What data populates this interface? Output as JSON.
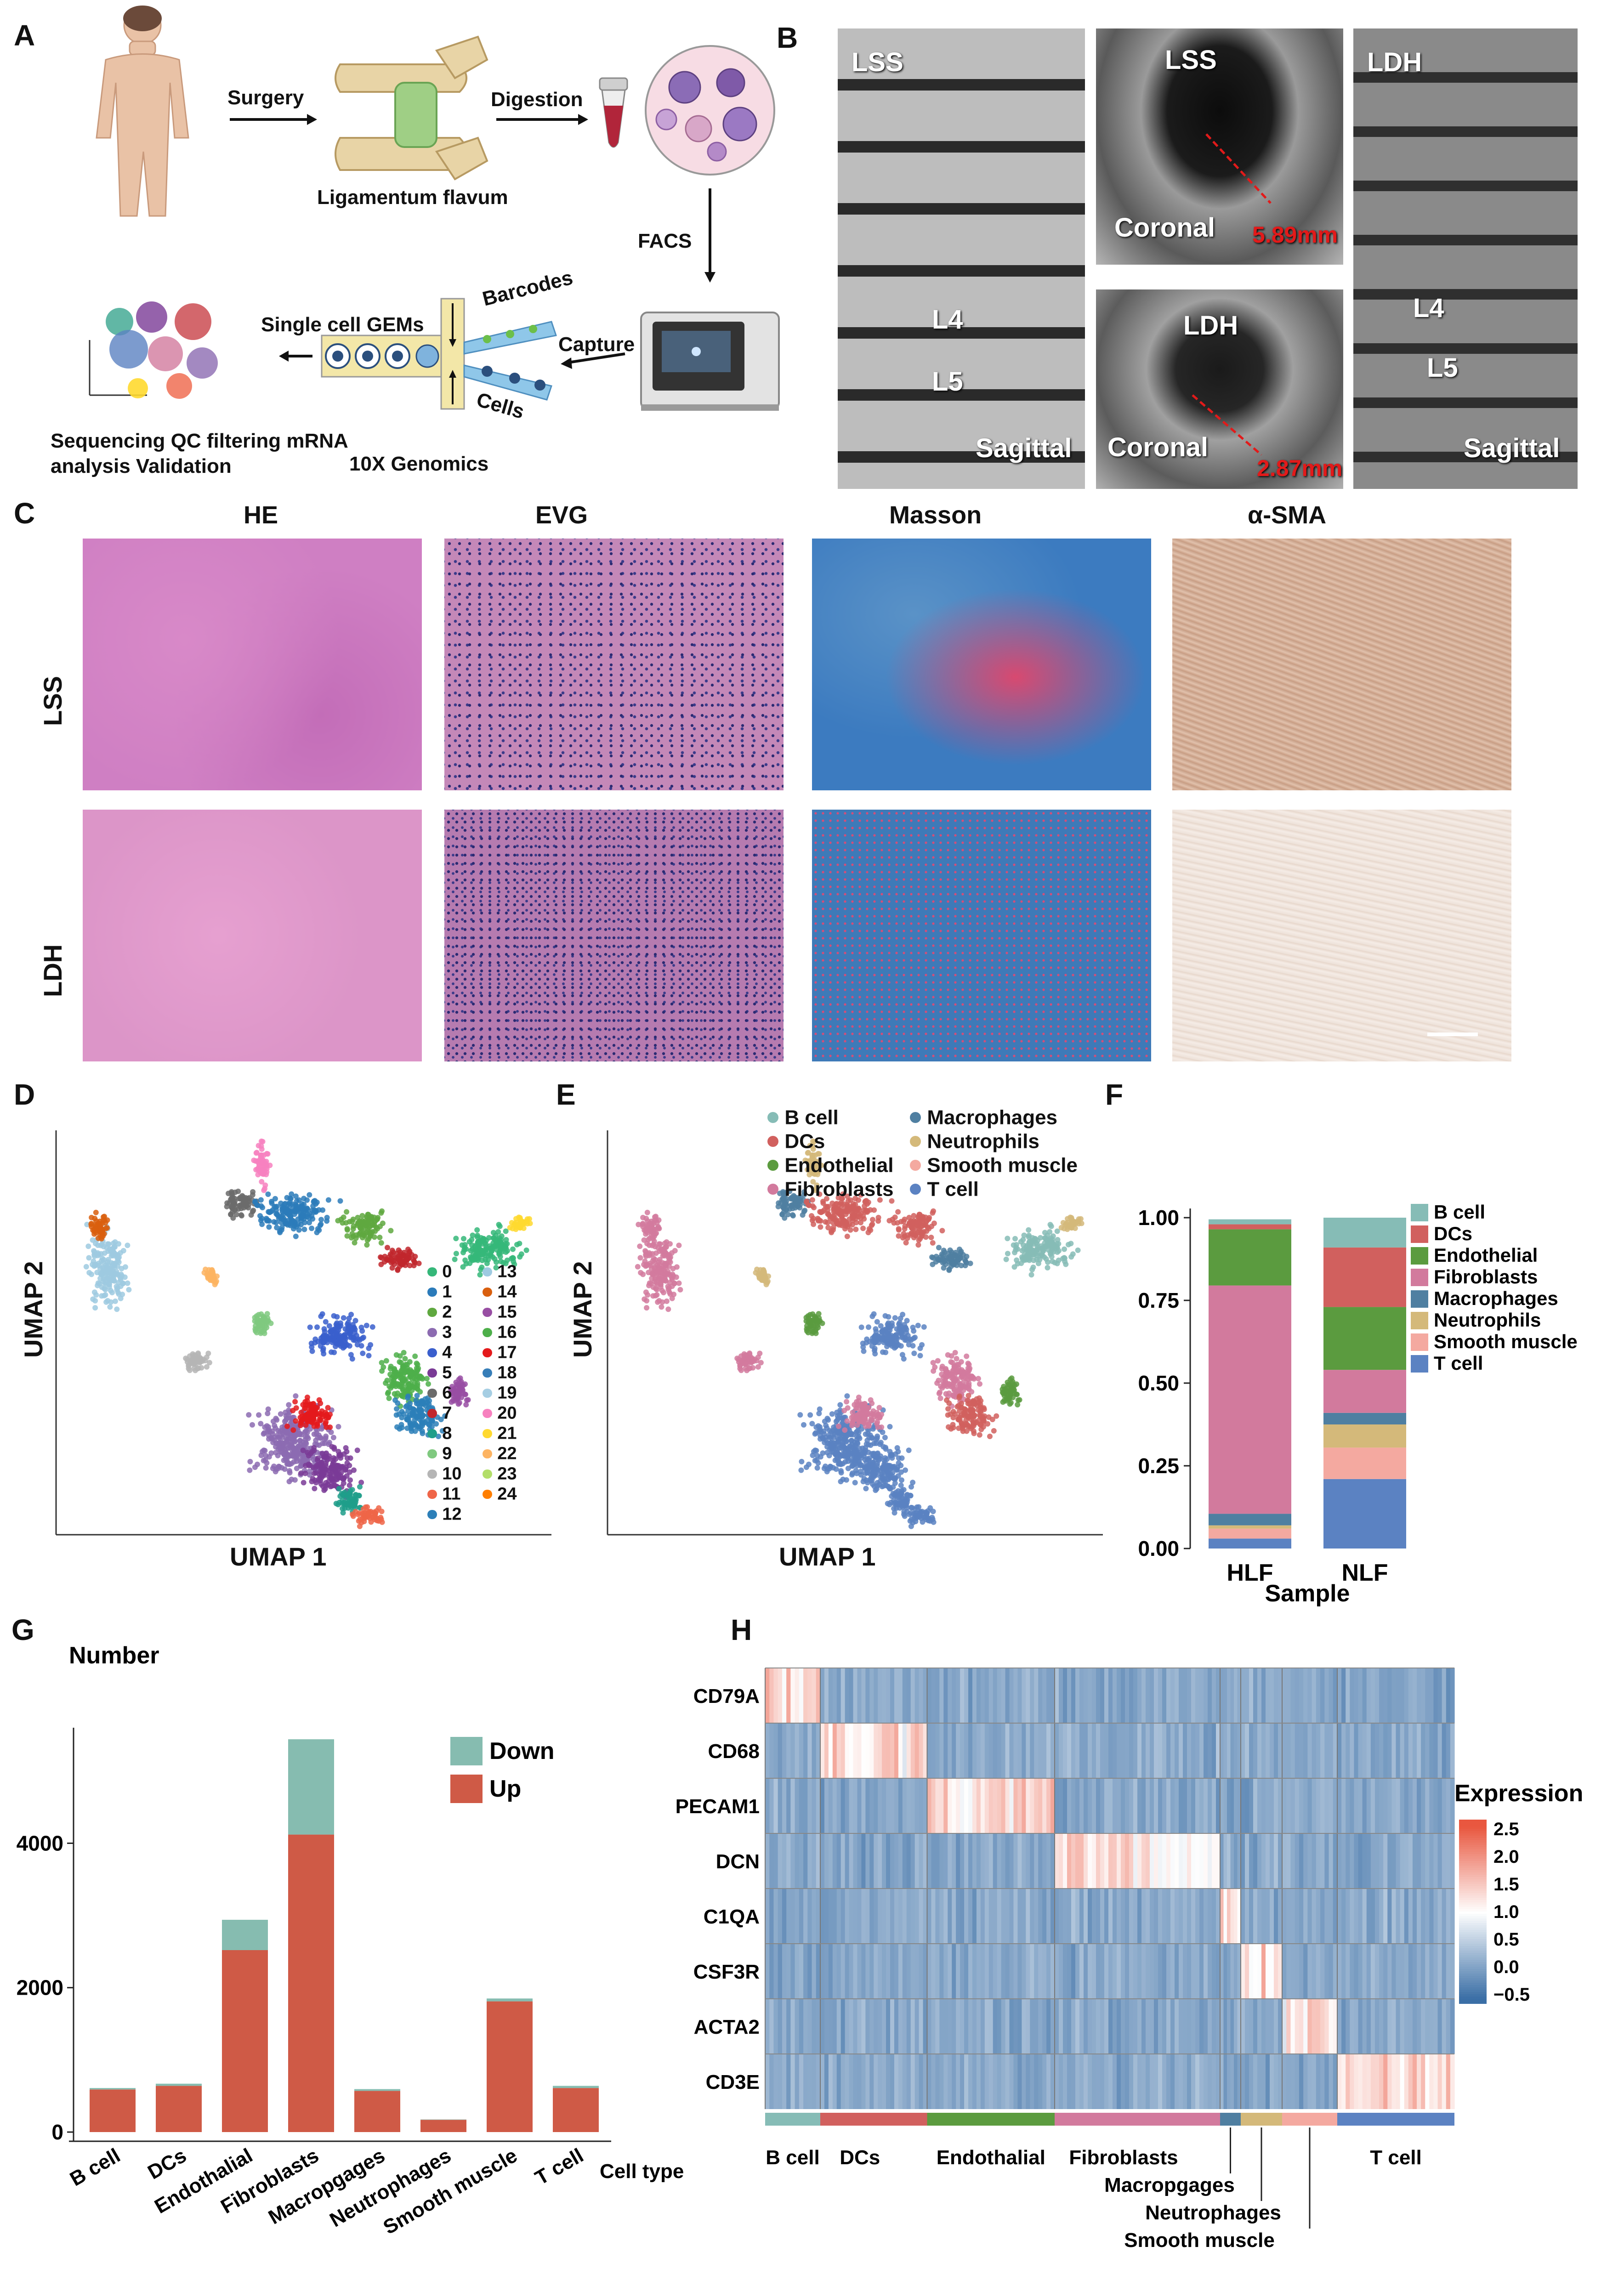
{
  "panels": {
    "A": {
      "label": "A",
      "steps": {
        "surgery": "Surgery",
        "digestion": "Digestion",
        "ligamentum": "Ligamentum flavum",
        "facs": "FACS",
        "single_cell": "Single cell GEMs",
        "barcodes": "Barcodes",
        "cells": "Cells",
        "capture": "Capture",
        "genomics": "10X Genomics",
        "sequencing_line1": "Sequencing QC filtering mRNA",
        "sequencing_line2": "analysis Validation"
      }
    },
    "B": {
      "label": "B",
      "images": [
        {
          "title": "LSS",
          "view": "Sagittal",
          "levels": [
            "L4",
            "L5"
          ]
        },
        {
          "title": "LSS",
          "view": "Coronal",
          "measure": "5.89mm"
        },
        {
          "title": "LDH",
          "view": "Coronal",
          "measure": "2.87mm"
        },
        {
          "title": "LDH",
          "view": "Sagittal",
          "levels": [
            "L4",
            "L5"
          ]
        }
      ]
    },
    "C": {
      "label": "C",
      "columns": [
        "HE",
        "EVG",
        "Masson",
        "α-SMA"
      ],
      "rows": [
        "LSS",
        "LDH"
      ]
    },
    "D": {
      "label": "D",
      "xlabel": "UMAP 1",
      "ylabel": "UMAP 2",
      "clusters_left": [
        "0",
        "1",
        "2",
        "3",
        "4",
        "5",
        "6",
        "7",
        "8",
        "9",
        "10",
        "11",
        "12"
      ],
      "clusters_right": [
        "13",
        "14",
        "15",
        "16",
        "17",
        "18",
        "19",
        "20",
        "21",
        "22",
        "23",
        "24"
      ],
      "colors_left": [
        "#35b779",
        "#2b7bba",
        "#5fa83f",
        "#8c6bb1",
        "#3a5fcd",
        "#7a3b96",
        "#6b6b6b",
        "#c1272d",
        "#1f9e89",
        "#7fc97f",
        "#b5b5b5",
        "#ef6548",
        "#2c7fb8"
      ],
      "colors_right": [
        "#9ecae1",
        "#d95f0e",
        "#984ea3",
        "#4daf4a",
        "#e41a1c",
        "#377eb8",
        "#a6cee3",
        "#f781bf",
        "#ffd92f",
        "#fdb462",
        "#b3de69",
        "#ff7f00"
      ]
    },
    "E": {
      "label": "E",
      "xlabel": "UMAP 1",
      "ylabel": "UMAP 2",
      "legend_left": [
        "B cell",
        "DCs",
        "Endothelial",
        "Fibroblasts"
      ],
      "legend_right": [
        "Macrophages",
        "Neutrophils",
        "Smooth muscle",
        "T cell"
      ]
    },
    "F": {
      "label": "F"
    },
    "G": {
      "label": "G"
    },
    "H": {
      "label": "H"
    }
  },
  "colors": {
    "B cell": "#86bcb6",
    "DCs": "#d1605e",
    "Endothelial": "#5b9b3f",
    "Fibroblasts": "#d27a9d",
    "Macrophages": "#4f7fa1",
    "Neutrophils": "#d4b97a",
    "Smooth muscle": "#f4a9a0",
    "T cell": "#5b82c2"
  },
  "chart_data": [
    {
      "id": "F",
      "type": "bar",
      "stacked": true,
      "categories": [
        "HLF",
        "NLF"
      ],
      "xlabel": "Sample",
      "ylabel": "",
      "ylim": [
        0,
        1
      ],
      "yticks": [
        "0.00",
        "0.25",
        "0.50",
        "0.75",
        "1.00"
      ],
      "legend": "right",
      "series": [
        {
          "name": "B cell",
          "values": [
            0.015,
            0.09
          ]
        },
        {
          "name": "DCs",
          "values": [
            0.015,
            0.18
          ]
        },
        {
          "name": "Endothelial",
          "values": [
            0.17,
            0.19
          ]
        },
        {
          "name": "Fibroblasts",
          "values": [
            0.69,
            0.13
          ]
        },
        {
          "name": "Macrophages",
          "values": [
            0.035,
            0.035
          ]
        },
        {
          "name": "Neutrophils",
          "values": [
            0.01,
            0.07
          ]
        },
        {
          "name": "Smooth muscle",
          "values": [
            0.03,
            0.095
          ]
        },
        {
          "name": "T cell",
          "values": [
            0.03,
            0.21
          ]
        }
      ]
    },
    {
      "id": "G",
      "type": "bar",
      "stacked": true,
      "title": "Number",
      "categories": [
        "B cell",
        "DCs",
        "Endothalial",
        "Fibroblasts",
        "Macropgages",
        "Neutrophages",
        "Smooth muscle",
        "T cell"
      ],
      "xlabel": "Cell type",
      "ylabel": "",
      "ylim": [
        0,
        5600
      ],
      "yticks": [
        0,
        2000,
        4000
      ],
      "legend": "top-right",
      "series": [
        {
          "name": "Up",
          "color": "#cf5a46",
          "values": [
            590,
            640,
            2520,
            4120,
            570,
            170,
            1810,
            610
          ]
        },
        {
          "name": "Down",
          "color": "#86bcb0",
          "values": [
            20,
            30,
            420,
            1320,
            25,
            5,
            40,
            30
          ]
        }
      ]
    },
    {
      "id": "H",
      "type": "heatmap",
      "rows": [
        "CD79A",
        "CD68",
        "PECAM1",
        "DCN",
        "C1QA",
        "CSF3R",
        "ACTA2",
        "CD3E"
      ],
      "columns": [
        "B cell",
        "DCs",
        "Endothalial",
        "Fibroblasts",
        "Macropgages",
        "Neutrophages",
        "Smooth muscle",
        "T cell"
      ],
      "legend_title": "Expression",
      "color_ticks": [
        "2.5",
        "2.0",
        "1.5",
        "1.0",
        "0.5",
        "0.0",
        "−0.5"
      ],
      "color_range": [
        -0.5,
        2.5
      ]
    }
  ]
}
